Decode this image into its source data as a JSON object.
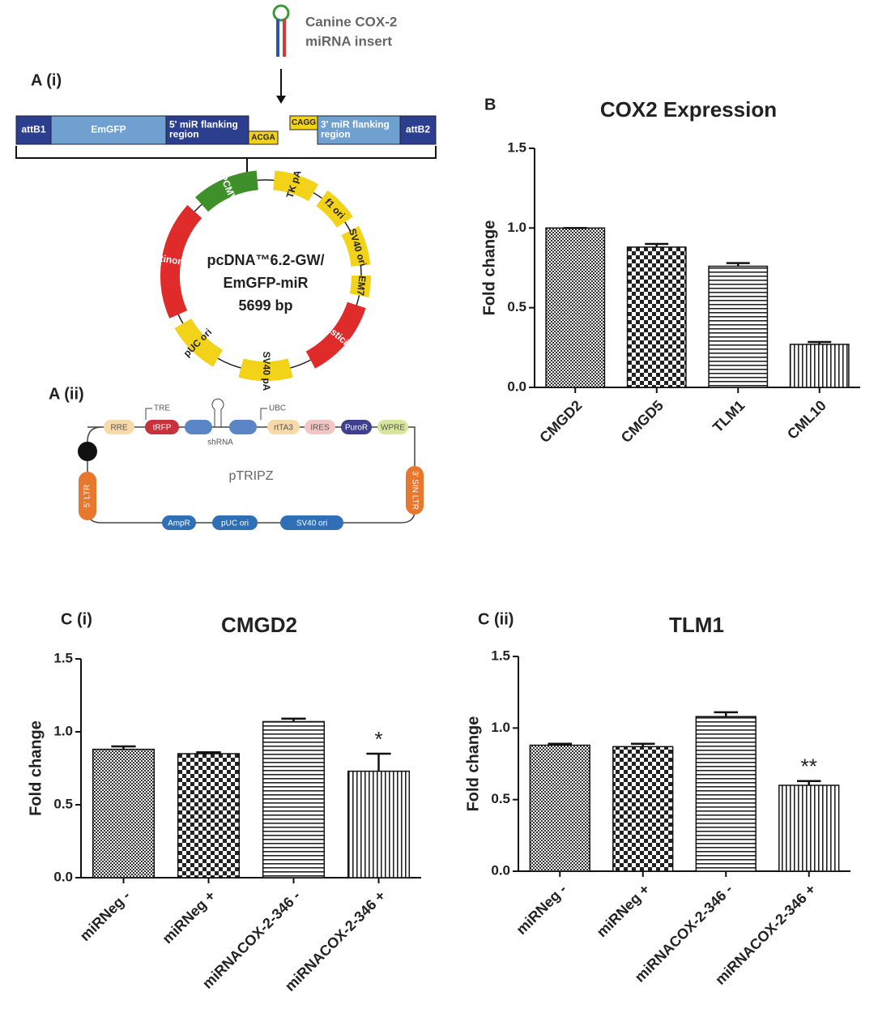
{
  "panel_labels": [
    "A (i)",
    "A (ii)",
    "B",
    "C (i)",
    "C (ii)"
  ],
  "insert_label": [
    "Canine COX-2",
    "miRNA insert"
  ],
  "cassette": [
    [
      "attB1"
    ],
    [
      "EmGFP"
    ],
    [
      "5' miR flanking",
      "region"
    ],
    [
      "ACGA"
    ],
    [
      "CAGG"
    ],
    [
      "3' miR flanking",
      "region"
    ],
    [
      "attB2"
    ]
  ],
  "plasmid": {
    "name": [
      "pcDNA™6.2-GW/",
      "EmGFP-miR",
      "5699 bp"
    ],
    "features": [
      "PCMV",
      "TK pA",
      "f1 ori",
      "SV40 ori",
      "EM7",
      "Blasticidin",
      "SV40 pA",
      "pUC ori",
      "Spectinomycin"
    ]
  },
  "ptripz": {
    "name": "pTRIPZ",
    "top": [
      "RRE",
      "tRFP",
      "rtTA3",
      "IRES",
      "PuroR",
      "WPRE"
    ],
    "bottom": [
      "AmpR",
      "pUC ori",
      "SV40 ori"
    ],
    "ends": [
      "5' LTR",
      "3' SIN LTR"
    ],
    "promoters": [
      "TRE",
      "UBC"
    ],
    "shrna": "shRNA"
  },
  "chart_data": [
    {
      "type": "bar",
      "title": "COX2 Expression",
      "y_label": "Fold change",
      "categories": [
        "CMGD2",
        "CMGD5",
        "TLM1",
        "CML10"
      ],
      "values": [
        1.0,
        0.88,
        0.76,
        0.27
      ],
      "errors": [
        0,
        0.02,
        0.02,
        0.015
      ],
      "ylim": [
        0,
        1.5
      ],
      "yticks": [
        {
          "value": 0,
          "label": "0.0"
        },
        {
          "value": 0.5,
          "label": "0.5"
        },
        {
          "value": 1,
          "label": "1.0"
        },
        {
          "value": 1.5,
          "label": "1.5"
        }
      ]
    },
    {
      "type": "bar",
      "title": "CMGD2",
      "y_label": "Fold change",
      "categories": [
        "miRNeg -",
        "miRNeg +",
        "miRNACOX-2-346 -",
        "miRNACOX-2-346 +"
      ],
      "values": [
        0.88,
        0.85,
        1.07,
        0.73
      ],
      "errors": [
        0.02,
        0.01,
        0.02,
        0.12
      ],
      "value_annotations": [
        null,
        null,
        null,
        "*"
      ],
      "ylim": [
        0,
        1.5
      ],
      "yticks": [
        {
          "value": 0,
          "label": "0.0"
        },
        {
          "value": 0.5,
          "label": "0.5"
        },
        {
          "value": 1,
          "label": "1.0"
        },
        {
          "value": 1.5,
          "label": "1.5"
        }
      ]
    },
    {
      "type": "bar",
      "title": "TLM1",
      "y_label": "Fold change",
      "categories": [
        "miRNeg -",
        "miRNeg +",
        "miRNACOX-2-346 -",
        "miRNACOX-2-346 +"
      ],
      "values": [
        0.88,
        0.87,
        1.08,
        0.6
      ],
      "errors": [
        0.01,
        0.02,
        0.03,
        0.03
      ],
      "value_annotations": [
        null,
        null,
        null,
        "**"
      ],
      "ylim": [
        0,
        1.5
      ],
      "yticks": [
        {
          "value": 0,
          "label": "0.0"
        },
        {
          "value": 0.5,
          "label": "0.5"
        },
        {
          "value": 1,
          "label": "1.0"
        },
        {
          "value": 1.5,
          "label": "1.5"
        }
      ]
    }
  ]
}
